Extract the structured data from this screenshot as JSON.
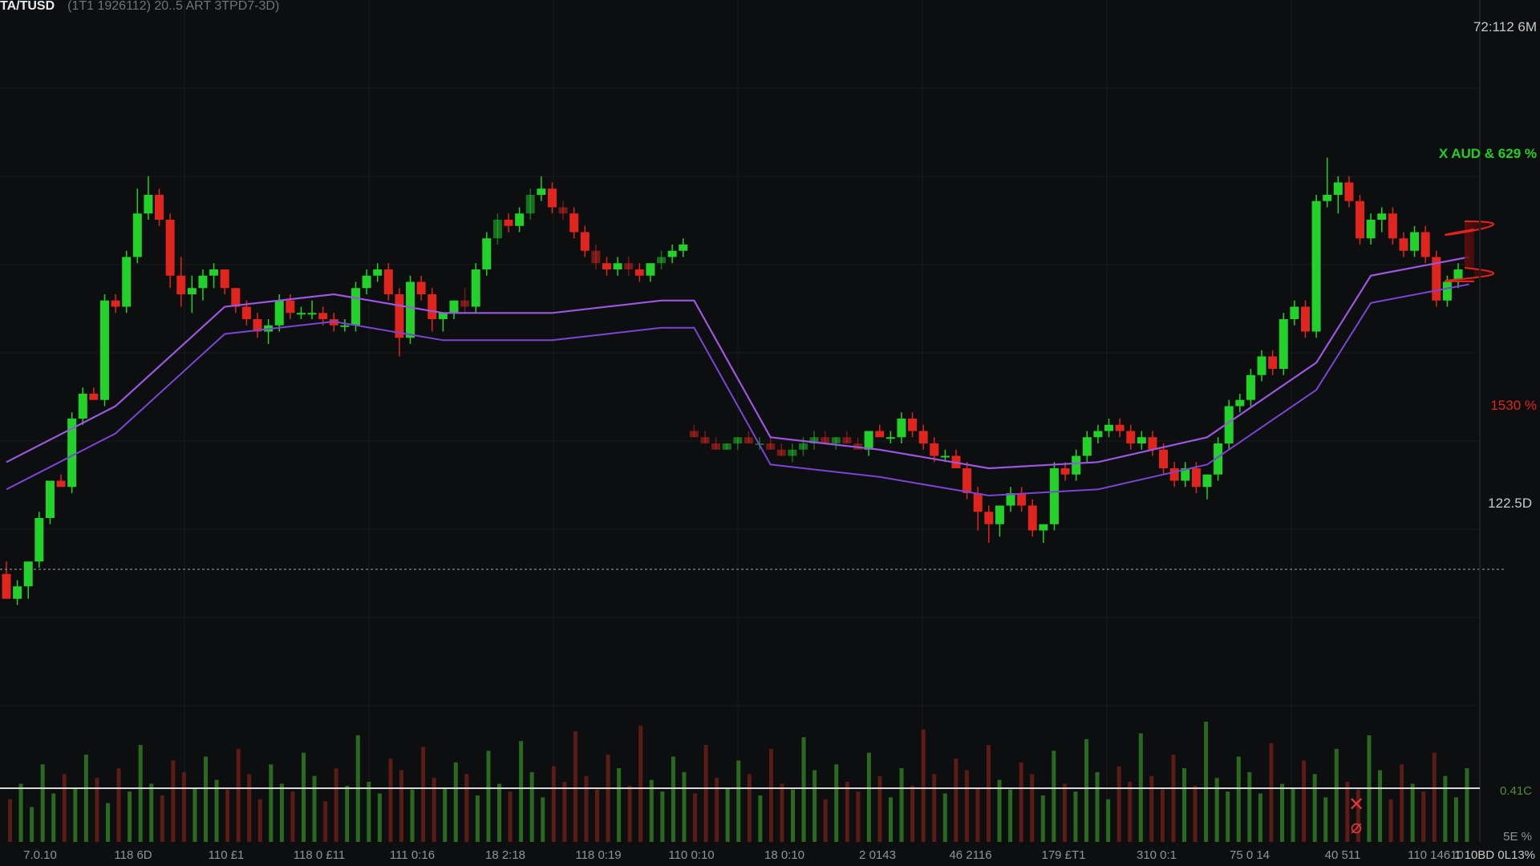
{
  "header": {
    "symbol": "TA/TUSD",
    "info": "(1T1  1926112)  20..5  ART  3TPD7-3D)"
  },
  "colors": {
    "background": "#0d0e10",
    "up": "#22d12a",
    "down": "#e0251f",
    "ma_fast": "#9b57e0",
    "ma_slow": "#7a45d6",
    "grid": "#17191c",
    "baseline": "#d8d8d8"
  },
  "right_labels": {
    "top": "72:112 6M",
    "green": "X AUD &   629 %",
    "red": "1530 %",
    "mid": "122.5D",
    "volume_line": "0.41C",
    "volume_bottom": "5E %",
    "corner": "1 10BD 0L13%"
  },
  "x_labels": [
    "7.0.10",
    "118 6D",
    "110 £1",
    "118 0 £11",
    "111 0:16",
    "18 2:18",
    "118 0:19",
    "110 0:10",
    "18 0:10",
    "2 0143",
    "46 2116",
    "179 £T1",
    "310 0:1",
    "75 0 14",
    "40 511",
    "110 14610"
  ],
  "alert_icon": "x-alert-icon",
  "chart_data": {
    "type": "candlestick",
    "title": "TA/TUSD",
    "series": [
      {
        "kind": "ohlc",
        "x": [
          0,
          1,
          2,
          3,
          4,
          5,
          6,
          7,
          8,
          9,
          10,
          11,
          12,
          13,
          14,
          15,
          16,
          17,
          18,
          19,
          20,
          21,
          22,
          23,
          24,
          25,
          26,
          27,
          28,
          29,
          30,
          31,
          32,
          33,
          34,
          35,
          36,
          37,
          38,
          39,
          40,
          41,
          42,
          43,
          44,
          45,
          46,
          47,
          48,
          49,
          50,
          51,
          52,
          53,
          54,
          55,
          56,
          57,
          58,
          59,
          60,
          61,
          62,
          63,
          64,
          65,
          66,
          67,
          68,
          69,
          70,
          71,
          72,
          73,
          74,
          75,
          76,
          77,
          78,
          79,
          80,
          81,
          82,
          83,
          84,
          85,
          86,
          87,
          88,
          89,
          90,
          91,
          92,
          93,
          94,
          95,
          96,
          97,
          98,
          99,
          100,
          101,
          102,
          103,
          104,
          105,
          106,
          107,
          108,
          109,
          110,
          111,
          112,
          113,
          114,
          115,
          116,
          117,
          118,
          119,
          120,
          121,
          122,
          123,
          124,
          125,
          126,
          127,
          128,
          129,
          130,
          131,
          132,
          133,
          134
        ],
        "ohlc": [
          [
            62,
            64,
            58,
            58
          ],
          [
            58,
            61,
            57,
            60
          ],
          [
            60,
            64,
            58,
            64
          ],
          [
            64,
            72,
            63,
            71
          ],
          [
            71,
            77,
            70,
            77
          ],
          [
            77,
            78,
            76,
            76
          ],
          [
            76,
            88,
            75,
            87
          ],
          [
            87,
            92,
            86,
            91
          ],
          [
            91,
            92,
            90,
            90
          ],
          [
            90,
            107,
            89,
            106
          ],
          [
            106,
            107,
            104,
            105
          ],
          [
            105,
            114,
            104,
            113
          ],
          [
            113,
            124,
            112,
            120
          ],
          [
            120,
            126,
            119,
            123
          ],
          [
            123,
            124,
            118,
            119
          ],
          [
            119,
            120,
            108,
            110
          ],
          [
            110,
            113,
            105,
            107
          ],
          [
            107,
            110,
            104,
            108
          ],
          [
            108,
            111,
            106,
            110
          ],
          [
            110,
            112,
            108,
            111
          ],
          [
            111,
            111,
            107,
            108
          ],
          [
            108,
            108,
            104,
            105
          ],
          [
            105,
            106,
            102,
            103
          ],
          [
            103,
            104,
            100,
            101
          ],
          [
            101,
            103,
            99,
            102
          ],
          [
            102,
            107,
            101,
            106
          ],
          [
            106,
            107,
            103,
            104
          ],
          [
            104,
            105,
            103,
            104
          ],
          [
            104,
            106,
            103,
            104
          ],
          [
            104,
            105,
            102,
            103
          ],
          [
            103,
            104,
            101,
            102
          ],
          [
            102,
            103,
            101,
            102
          ],
          [
            102,
            109,
            101,
            108
          ],
          [
            108,
            111,
            107,
            110
          ],
          [
            110,
            112,
            109,
            111
          ],
          [
            111,
            112,
            106,
            107
          ],
          [
            107,
            108,
            97,
            100
          ],
          [
            100,
            110,
            99,
            109
          ],
          [
            109,
            110,
            106,
            107
          ],
          [
            107,
            108,
            101,
            103
          ],
          [
            103,
            104,
            101,
            104
          ],
          [
            104,
            106,
            103,
            106
          ],
          [
            106,
            108,
            104,
            105
          ],
          [
            105,
            112,
            104,
            111
          ],
          [
            111,
            117,
            110,
            116
          ],
          [
            116,
            120,
            115,
            119
          ],
          [
            119,
            120,
            117,
            118
          ],
          [
            118,
            121,
            117,
            120
          ],
          [
            120,
            124,
            119,
            123
          ],
          [
            123,
            126,
            122,
            124
          ],
          [
            124,
            125,
            120,
            121
          ],
          [
            121,
            122,
            119,
            120
          ],
          [
            120,
            121,
            116,
            117
          ],
          [
            117,
            118,
            113,
            114
          ],
          [
            114,
            115,
            111,
            112
          ],
          [
            112,
            113,
            110,
            111
          ],
          [
            111,
            113,
            110,
            112
          ],
          [
            112,
            113,
            110,
            111
          ],
          [
            111,
            112,
            109,
            110
          ],
          [
            110,
            112,
            109,
            112
          ],
          [
            112,
            114,
            111,
            113
          ],
          [
            113,
            115,
            112,
            114
          ],
          [
            114,
            116,
            113,
            115
          ],
          [
            85,
            86,
            84,
            84
          ],
          [
            84,
            85,
            83,
            83
          ],
          [
            83,
            84,
            82,
            82
          ],
          [
            82,
            83,
            82,
            83
          ],
          [
            83,
            84,
            82,
            84
          ],
          [
            84,
            85,
            83,
            83
          ],
          [
            83,
            84,
            82,
            83
          ],
          [
            83,
            84,
            82,
            82
          ],
          [
            82,
            83,
            81,
            81
          ],
          [
            81,
            83,
            80,
            82
          ],
          [
            82,
            84,
            81,
            83
          ],
          [
            83,
            85,
            82,
            84
          ],
          [
            84,
            85,
            83,
            83
          ],
          [
            83,
            84,
            82,
            84
          ],
          [
            84,
            85,
            83,
            83
          ],
          [
            83,
            84,
            82,
            82
          ],
          [
            82,
            85,
            81,
            85
          ],
          [
            85,
            86,
            84,
            84
          ],
          [
            84,
            85,
            83,
            84
          ],
          [
            84,
            88,
            83,
            87
          ],
          [
            87,
            88,
            84,
            85
          ],
          [
            85,
            86,
            82,
            83
          ],
          [
            83,
            84,
            80,
            81
          ],
          [
            81,
            82,
            80,
            81
          ],
          [
            81,
            82,
            79,
            79
          ],
          [
            79,
            80,
            74,
            75
          ],
          [
            75,
            76,
            69,
            72
          ],
          [
            72,
            73,
            67,
            70
          ],
          [
            70,
            73,
            68,
            73
          ],
          [
            73,
            76,
            72,
            75
          ],
          [
            75,
            76,
            72,
            73
          ],
          [
            73,
            74,
            68,
            69
          ],
          [
            69,
            70,
            67,
            70
          ],
          [
            70,
            80,
            69,
            79
          ],
          [
            79,
            80,
            77,
            78
          ],
          [
            78,
            82,
            77,
            81
          ],
          [
            81,
            85,
            80,
            84
          ],
          [
            84,
            86,
            83,
            85
          ],
          [
            85,
            87,
            84,
            86
          ],
          [
            86,
            87,
            84,
            85
          ],
          [
            85,
            86,
            82,
            83
          ],
          [
            83,
            85,
            82,
            84
          ],
          [
            84,
            85,
            81,
            82
          ],
          [
            82,
            83,
            78,
            79
          ],
          [
            79,
            80,
            76,
            77
          ],
          [
            77,
            80,
            76,
            79
          ],
          [
            79,
            80,
            75,
            76
          ],
          [
            76,
            78,
            74,
            78
          ],
          [
            78,
            84,
            77,
            83
          ],
          [
            83,
            90,
            82,
            89
          ],
          [
            89,
            91,
            88,
            90
          ],
          [
            90,
            95,
            89,
            94
          ],
          [
            94,
            98,
            93,
            97
          ],
          [
            97,
            98,
            94,
            95
          ],
          [
            95,
            104,
            94,
            103
          ],
          [
            103,
            106,
            102,
            105
          ],
          [
            105,
            106,
            100,
            101
          ],
          [
            101,
            123,
            100,
            122
          ],
          [
            122,
            129,
            121,
            123
          ],
          [
            123,
            126,
            120,
            125
          ],
          [
            125,
            126,
            121,
            122
          ],
          [
            122,
            123,
            115,
            116
          ],
          [
            116,
            120,
            115,
            119
          ],
          [
            119,
            121,
            117,
            120
          ],
          [
            120,
            121,
            115,
            116
          ],
          [
            116,
            117,
            113,
            114
          ],
          [
            114,
            118,
            113,
            117
          ],
          [
            117,
            118,
            112,
            113
          ],
          [
            113,
            114,
            105,
            106
          ],
          [
            106,
            110,
            105,
            109
          ],
          [
            109,
            112,
            108,
            111
          ]
        ]
      },
      {
        "name": "",
        "kind": "ma",
        "x": [
          0,
          10,
          20,
          30,
          40,
          50,
          60,
          63,
          70,
          80,
          90,
          100,
          110,
          120,
          125,
          134
        ],
        "values": [
          80,
          89,
          105,
          107,
          104,
          104,
          106,
          106,
          84,
          82,
          79,
          80,
          84,
          96,
          110,
          113
        ]
      }
    ],
    "volume": [
      22,
      30,
      18,
      40,
      25,
      35,
      28,
      45,
      33,
      20,
      38,
      26,
      50,
      30,
      24,
      42,
      36,
      28,
      44,
      32,
      27,
      48,
      35,
      22,
      40,
      30,
      26,
      46,
      34,
      21,
      38,
      29,
      55,
      31,
      25,
      43,
      37,
      27,
      49,
      33,
      28,
      41,
      35,
      24,
      47,
      30,
      26,
      52,
      36,
      23,
      39,
      31,
      57,
      34,
      27,
      45,
      38,
      29,
      60,
      32,
      26,
      44,
      36,
      25,
      50,
      33,
      28,
      42,
      35,
      24,
      48,
      30,
      27,
      54,
      37,
      22,
      40,
      31,
      26,
      46,
      34,
      23,
      38,
      29,
      58,
      35,
      25,
      43,
      37,
      28,
      50,
      32,
      27,
      41,
      35,
      24,
      47,
      30,
      26,
      53,
      36,
      22,
      39,
      31,
      56,
      34,
      27,
      45,
      38,
      29,
      62,
      33,
      26,
      44,
      36,
      25,
      51,
      30,
      28,
      42,
      35,
      23,
      48,
      31,
      27,
      55,
      37,
      22,
      40,
      30,
      26,
      46,
      34,
      23,
      38
    ],
    "ylim": [
      55,
      135
    ],
    "grid": true
  }
}
